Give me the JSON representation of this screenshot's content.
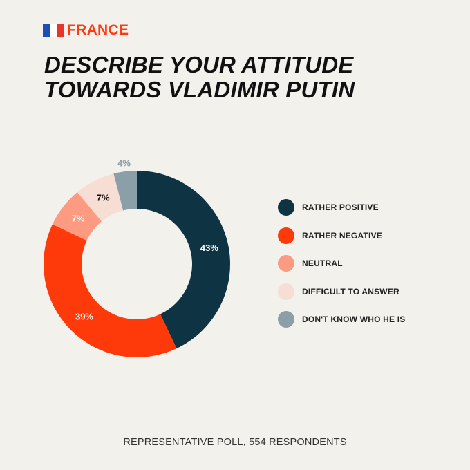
{
  "header": {
    "country": "FRANCE",
    "flag_colors": [
      "#1b4fb8",
      "#ffffff",
      "#e8352b"
    ],
    "title_lines": [
      "DESCRIBE YOUR ATTITUDE",
      "TOWARDS VLADIMIR PUTIN"
    ]
  },
  "chart_data": {
    "type": "donut",
    "title": "DESCRIBE YOUR ATTITUDE TOWARDS VLADIMIR PUTIN",
    "unit": "%",
    "legend_position": "right",
    "slices": [
      {
        "label": "RATHER POSITIVE",
        "value": 43,
        "display": "43%",
        "color": "#0e3342",
        "text_color": "#ffffff"
      },
      {
        "label": "RATHER NEGATIVE",
        "value": 39,
        "display": "39%",
        "color": "#ff3a0a",
        "text_color": "#ffffff"
      },
      {
        "label": "NEUTRAL",
        "value": 7,
        "display": "7%",
        "color": "#fc9a82",
        "text_color": "#ffffff"
      },
      {
        "label": "DIFFICULT TO ANSWER",
        "value": 7,
        "display": "7%",
        "color": "#f6ded4",
        "text_color": "#111111"
      },
      {
        "label": "DON'T KNOW WHO HE IS",
        "value": 4,
        "display": "4%",
        "color": "#8a9fa8",
        "text_color": "#8a9fa8"
      }
    ]
  },
  "footer": {
    "note": "REPRESENTATIVE POLL, 554 RESPONDENTS"
  }
}
